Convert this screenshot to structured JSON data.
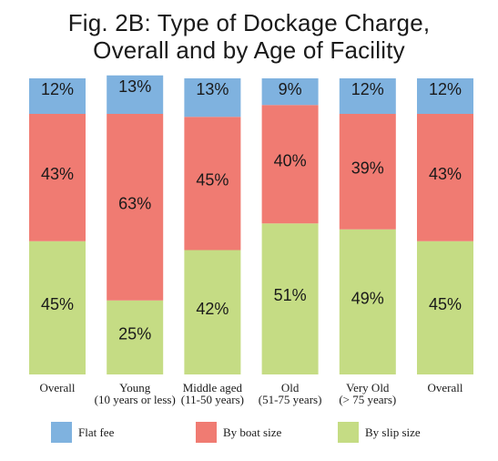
{
  "title_lines": [
    "Fig. 2B: Type of Dockage Charge,",
    "Overall and by Age of Facility"
  ],
  "chart_data": {
    "type": "bar",
    "stacked": true,
    "percent": true,
    "ylim": [
      0,
      100
    ],
    "categories": [
      [
        "Overall"
      ],
      [
        "Young",
        "(10 years or less)"
      ],
      [
        "Middle aged",
        "(11-50 years)"
      ],
      [
        "Old",
        "(51-75 years)"
      ],
      [
        "Very Old",
        "(> 75 years)"
      ],
      [
        "Overall"
      ]
    ],
    "series": [
      {
        "name": "By slip size",
        "color": "#c5dc84",
        "values": [
          45,
          25,
          42,
          51,
          49,
          45
        ]
      },
      {
        "name": "By boat size",
        "color": "#f07b72",
        "values": [
          43,
          63,
          45,
          40,
          39,
          43
        ]
      },
      {
        "name": "Flat fee",
        "color": "#7fb2df",
        "values": [
          12,
          13,
          13,
          9,
          12,
          12
        ]
      }
    ],
    "legend": {
      "position": "bottom",
      "order": [
        "Flat fee",
        "By boat size",
        "By slip size"
      ]
    },
    "grid": false
  }
}
